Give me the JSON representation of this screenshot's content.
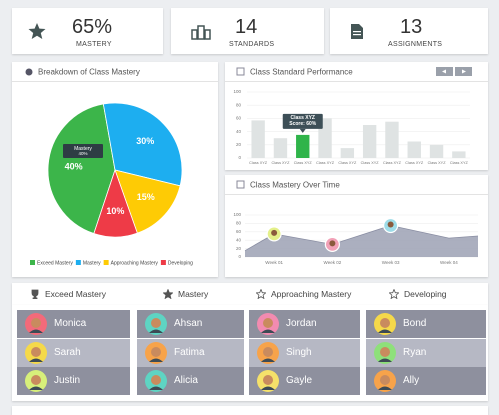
{
  "stats": [
    {
      "value": "65%",
      "label": "MASTERY"
    },
    {
      "value": "14",
      "label": "STANDARDS"
    },
    {
      "value": "13",
      "label": "ASSIGNMENTS"
    }
  ],
  "chart_data": [
    {
      "type": "pie",
      "title": "Breakdown of Class Mastery",
      "categories": [
        "Exceed Mastery",
        "Mastery",
        "Approaching Mastery",
        "Developing"
      ],
      "values": [
        40,
        30,
        15,
        10
      ],
      "value_labels": [
        "40%",
        "30%",
        "15%",
        "10%"
      ],
      "colors": [
        "#3cb54a",
        "#1daef0",
        "#fecb05",
        "#ee3b47"
      ],
      "tooltip": {
        "title": "Mastery",
        "text": "40%"
      }
    },
    {
      "type": "bar",
      "title": "Class Standard Performance",
      "categories": [
        "Class XYZ",
        "Class XYZ",
        "Class XYZ",
        "Class XYZ",
        "Class XYZ",
        "Class XYZ",
        "Class XYZ",
        "Class XYZ",
        "Class XYZ",
        "Class XYZ"
      ],
      "values": [
        57,
        30,
        35,
        60,
        15,
        50,
        55,
        25,
        20,
        10
      ],
      "color": "#dfe3e3",
      "highlight_color": "#2fb44a",
      "highlight": 2,
      "tooltip": {
        "title": "Class XYZ",
        "text": "Score: 60%"
      },
      "ylim": [
        0,
        100
      ],
      "yticks": [
        0,
        20,
        40,
        60,
        80,
        100
      ],
      "grid": true
    },
    {
      "type": "area",
      "title": "Class Mastery Over Time",
      "categories": [
        null,
        "Week 01",
        "Week 02",
        "Week 03",
        "Week 04",
        null
      ],
      "values": [
        15,
        55,
        30,
        75,
        45,
        50
      ],
      "color": "#a2a6b8",
      "ylim": [
        0,
        100
      ],
      "yticks": [
        0,
        20,
        40,
        60,
        80,
        100
      ],
      "grid": true
    }
  ],
  "groups": [
    {
      "name": "Exceed Mastery",
      "students": [
        "Monica",
        "Sarah",
        "Justin"
      ]
    },
    {
      "name": "Mastery",
      "students": [
        "Ahsan",
        "Fatima",
        "Alicia"
      ]
    },
    {
      "name": "Approaching Mastery",
      "students": [
        "Jordan",
        "Singh",
        "Gayle"
      ]
    },
    {
      "name": "Developing",
      "students": [
        "Bond",
        "Ryan",
        "Ally"
      ]
    }
  ]
}
